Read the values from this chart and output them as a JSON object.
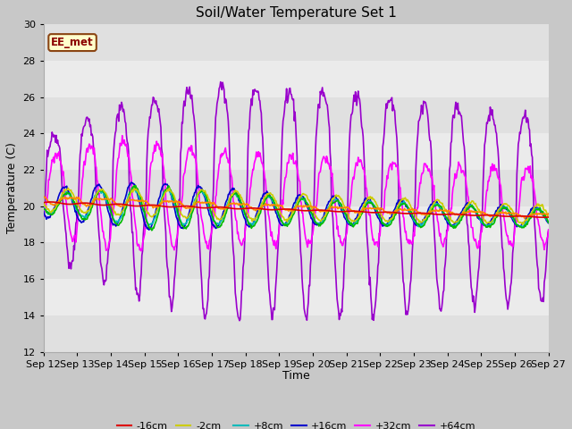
{
  "title": "Soil/Water Temperature Set 1",
  "xlabel": "Time",
  "ylabel": "Temperature (C)",
  "ylim": [
    12,
    30
  ],
  "x_tick_labels": [
    "Sep 12",
    "Sep 13",
    "Sep 14",
    "Sep 15",
    "Sep 16",
    "Sep 17",
    "Sep 18",
    "Sep 19",
    "Sep 20",
    "Sep 21",
    "Sep 22",
    "Sep 23",
    "Sep 24",
    "Sep 25",
    "Sep 26",
    "Sep 27"
  ],
  "annotation_text": "EE_met",
  "annotation_box_facecolor": "#ffffcc",
  "annotation_box_edgecolor": "#8B4513",
  "series": {
    "-16cm": {
      "color": "#dd0000",
      "lw": 1.2
    },
    "-8cm": {
      "color": "#ff8800",
      "lw": 1.2
    },
    "-2cm": {
      "color": "#cccc00",
      "lw": 1.2
    },
    "+2cm": {
      "color": "#00bb00",
      "lw": 1.2
    },
    "+8cm": {
      "color": "#00bbbb",
      "lw": 1.2
    },
    "+16cm": {
      "color": "#0000cc",
      "lw": 1.2
    },
    "+32cm": {
      "color": "#ff00ff",
      "lw": 1.2
    },
    "+64cm": {
      "color": "#9900cc",
      "lw": 1.2
    }
  },
  "stripe_colors": [
    "#e0e0e0",
    "#ebebeb"
  ],
  "fig_facecolor": "#c8c8c8",
  "ax_facecolor": "#e8e8e8"
}
